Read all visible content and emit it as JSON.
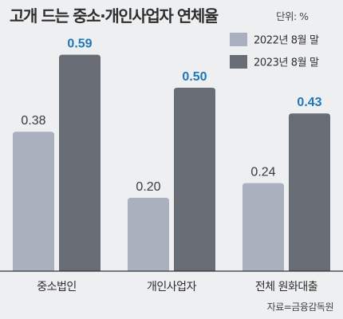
{
  "title": "고개 드는 중소·개인사업자 연체율",
  "unit_label": "단위: %",
  "source": "자료=금융감독원",
  "chart_data": {
    "type": "bar",
    "categories": [
      "중소법인",
      "개인사업자",
      "전체 원화대출"
    ],
    "series": [
      {
        "name": "2022년 8월 말",
        "values": [
          0.38,
          0.2,
          0.24
        ],
        "value_labels": [
          "0.38",
          "0.20",
          "0.24"
        ],
        "color": "#a8b1bd",
        "label_color": "#3a3a3a"
      },
      {
        "name": "2023년 8월 말",
        "values": [
          0.59,
          0.5,
          0.43
        ],
        "value_labels": [
          "0.59",
          "0.50",
          "0.43"
        ],
        "color": "#686c74",
        "label_color": "#1e77b8"
      }
    ],
    "ylim": [
      0,
      0.7
    ],
    "legend_position": "top-right",
    "grid": false
  }
}
